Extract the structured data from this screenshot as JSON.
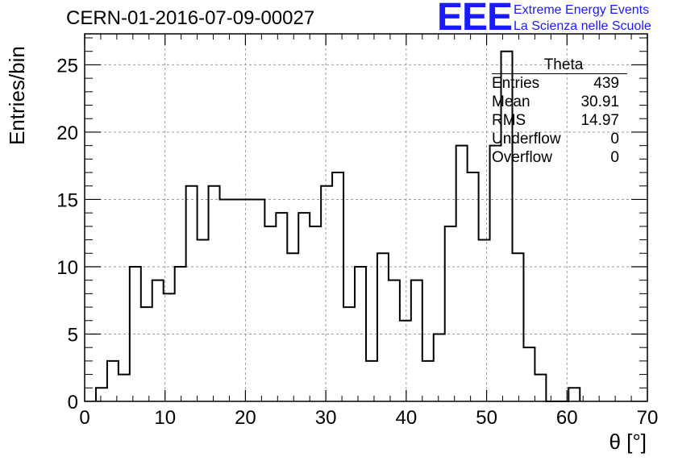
{
  "header": {
    "run_title": "CERN-01-2016-07-09-00027",
    "logo_text": "EEE",
    "logo_line1": "Extreme Energy Events",
    "logo_line2": "La Scienza nelle Scuole"
  },
  "stats_box": {
    "title": "Theta",
    "rows": [
      {
        "label": "Entries",
        "value": "439"
      },
      {
        "label": "Mean",
        "value": "30.91"
      },
      {
        "label": "RMS",
        "value": "14.97"
      },
      {
        "label": "Underflow",
        "value": "0"
      },
      {
        "label": "Overflow",
        "value": "0"
      }
    ]
  },
  "colors": {
    "logo": "#1a1aff",
    "line": "#000000",
    "grid": "#9a9a9a"
  },
  "chart_data": {
    "type": "histogram",
    "xlabel": "θ [°]",
    "ylabel": "Entries/bin",
    "xlim": [
      0,
      70
    ],
    "ylim": [
      0,
      27.3
    ],
    "bin_width": 1.4,
    "x_ticks": [
      0,
      10,
      20,
      30,
      40,
      50,
      60,
      70
    ],
    "y_ticks": [
      0,
      5,
      10,
      15,
      20,
      25
    ],
    "grid": true,
    "legend": "top-right stats box",
    "bin_edges_start": [
      1.4,
      2.8,
      4.2,
      5.6,
      7.0,
      8.4,
      9.8,
      11.2,
      12.6,
      14.0,
      15.4,
      16.8,
      18.2,
      19.6,
      21.0,
      22.4,
      23.8,
      25.2,
      26.6,
      28.0,
      29.4,
      30.8,
      32.2,
      33.6,
      35.0,
      36.4,
      37.8,
      39.2,
      40.6,
      42.0,
      43.4,
      44.8,
      46.2,
      47.6,
      49.0,
      50.4,
      51.8,
      53.2,
      54.6,
      56.0,
      57.4,
      58.8,
      60.2
    ],
    "values": [
      1,
      3,
      2,
      10,
      7,
      9,
      8,
      10,
      16,
      12,
      16,
      15,
      15,
      15,
      15,
      13,
      14,
      11,
      14,
      13,
      16,
      17,
      7,
      10,
      3,
      11,
      9,
      6,
      9,
      3,
      5,
      13,
      19,
      17,
      12,
      19,
      26,
      11,
      4,
      2,
      0,
      0,
      1
    ]
  }
}
